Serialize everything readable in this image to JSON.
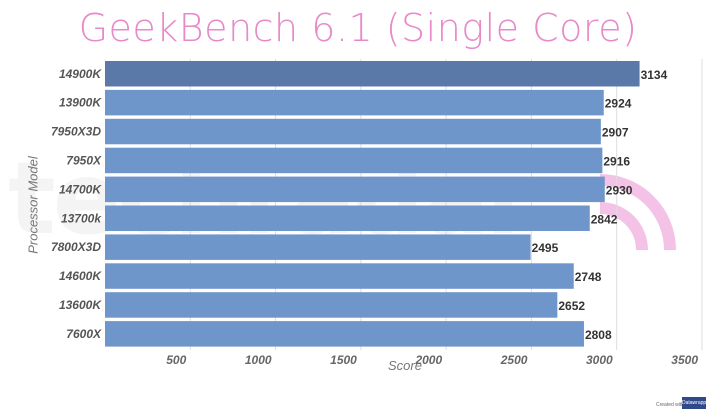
{
  "chart_data": {
    "type": "bar",
    "orientation": "horizontal",
    "title": "GeekBench 6.1 (Single Core)",
    "xlabel": "Score",
    "ylabel": "Processor Model",
    "categories": [
      "14900K",
      "13900K",
      "7950X3D",
      "7950X",
      "14700K",
      "13700k",
      "7800X3D",
      "14600K",
      "13600K",
      "7600X"
    ],
    "values": [
      3134,
      2924,
      2907,
      2916,
      2930,
      2842,
      2495,
      2748,
      2652,
      2808
    ],
    "xlim": [
      0,
      3500
    ],
    "xticks": [
      500,
      1000,
      1500,
      2000,
      2500,
      3000,
      3500
    ],
    "highlight_index": 0,
    "colors": {
      "bar": "#6f96cb",
      "highlight": "#5a79a8",
      "title": "#e88ac8"
    },
    "grid": "vertical"
  },
  "watermark": "techradar",
  "credit": {
    "text": "Created with",
    "logo": "Datawrapper"
  }
}
